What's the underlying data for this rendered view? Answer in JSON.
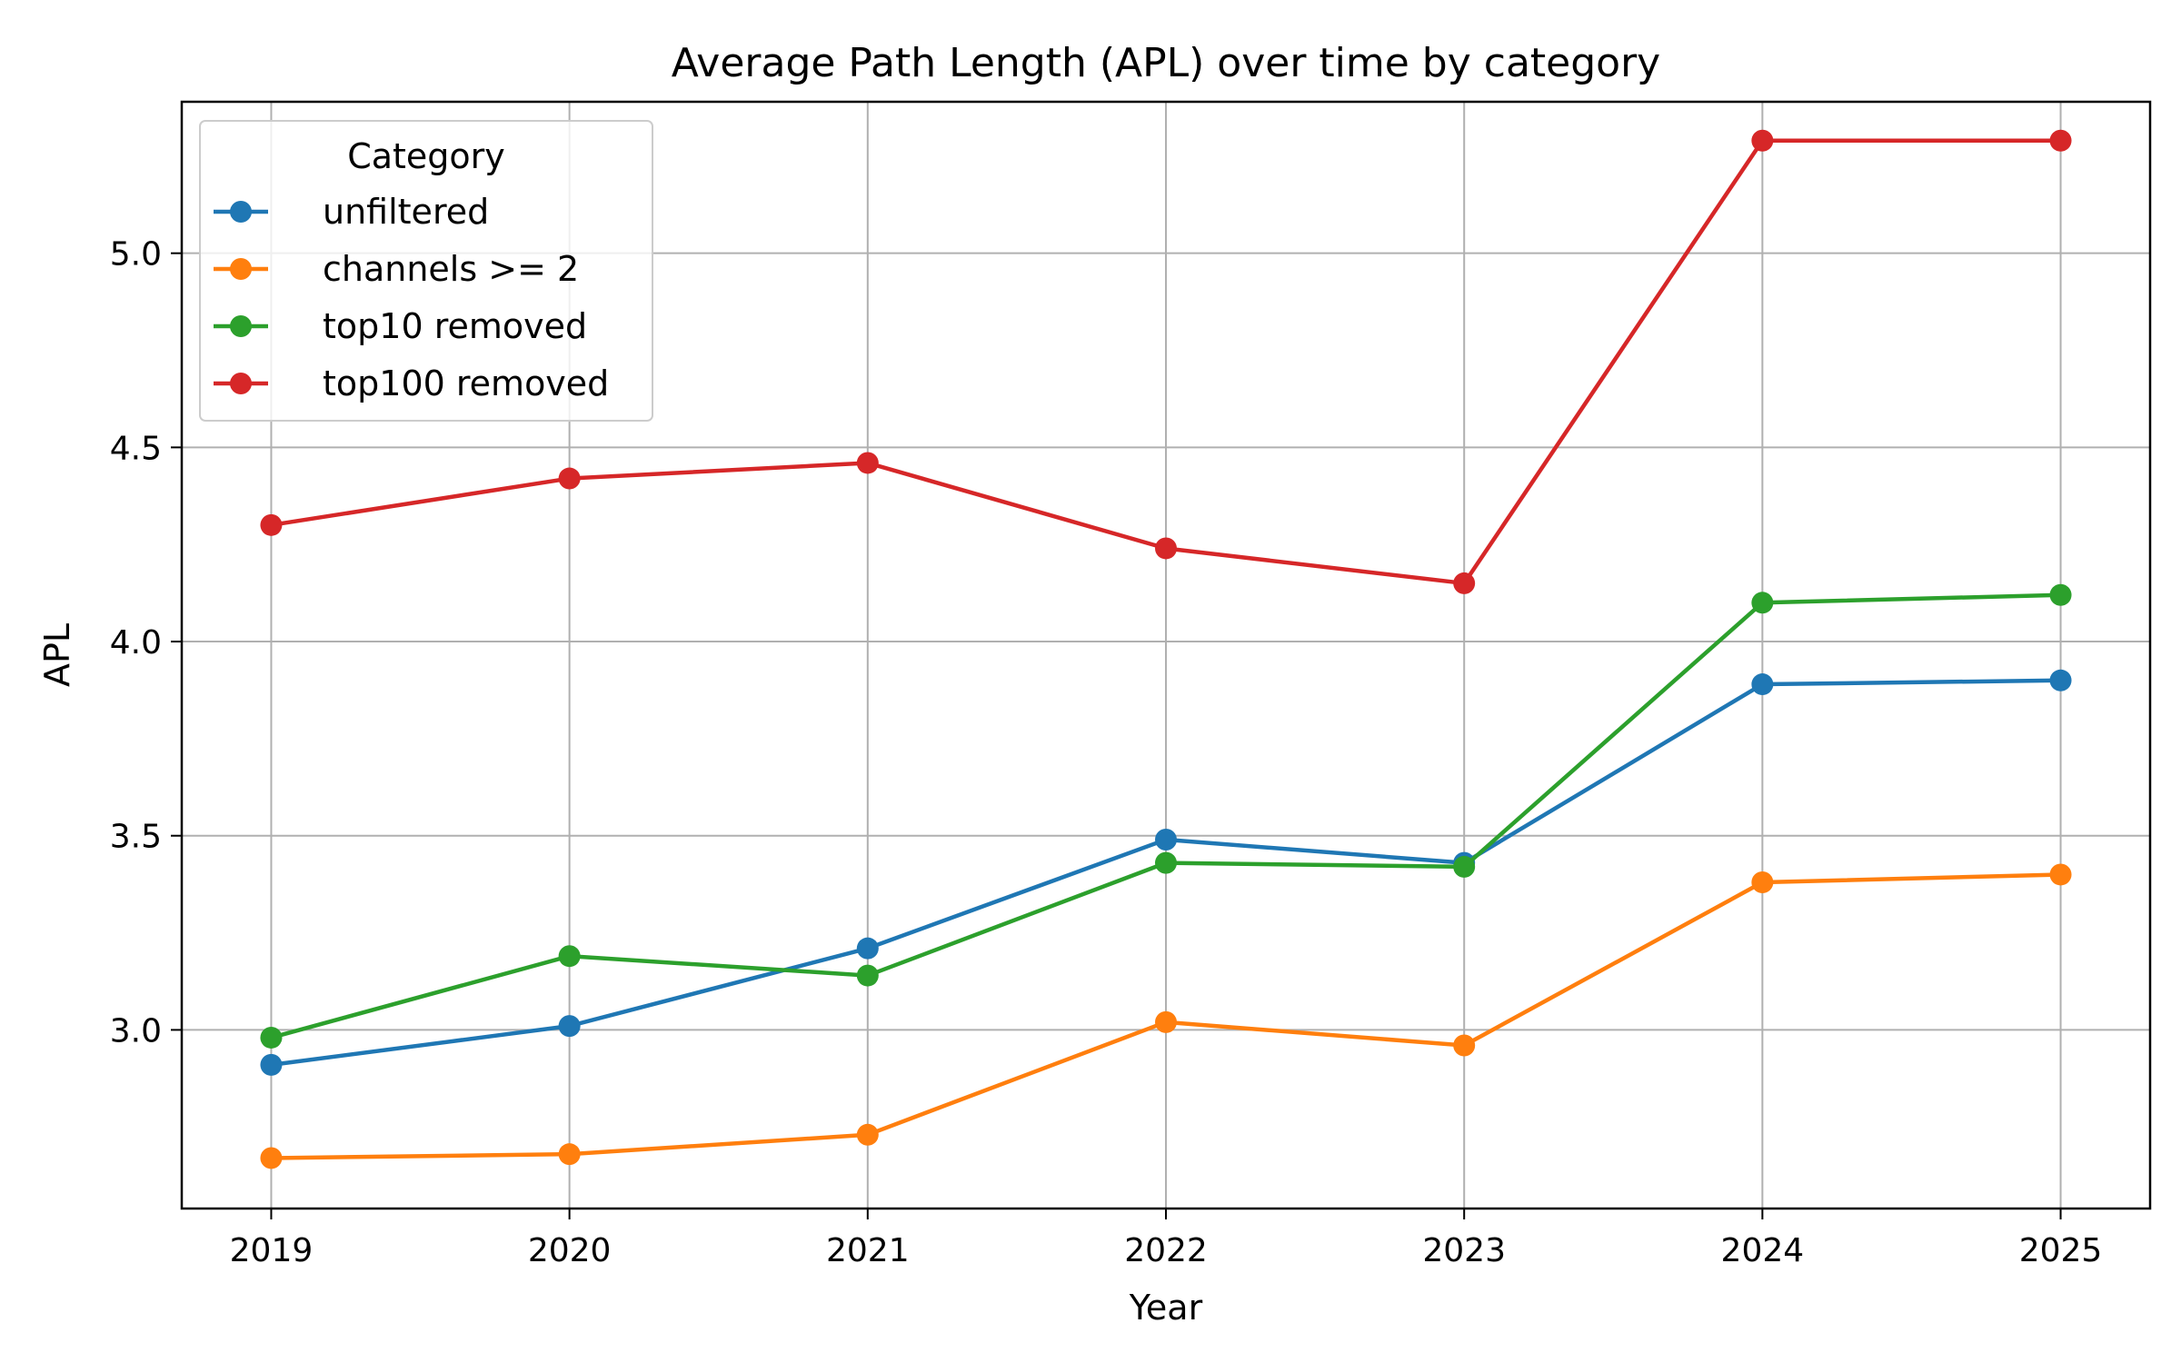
{
  "chart_data": {
    "type": "line",
    "title": "Average Path Length (APL) over time by category",
    "xlabel": "Year",
    "ylabel": "APL",
    "x": [
      2019,
      2020,
      2021,
      2022,
      2023,
      2024,
      2025
    ],
    "x_tick_labels": [
      "2019",
      "2020",
      "2021",
      "2022",
      "2023",
      "2024",
      "2025"
    ],
    "y_ticks": [
      3.0,
      3.5,
      4.0,
      4.5,
      5.0
    ],
    "y_tick_labels": [
      "3.0",
      "3.5",
      "4.0",
      "4.5",
      "5.0"
    ],
    "xlim": [
      2018.7,
      2025.3
    ],
    "ylim": [
      2.54,
      5.39
    ],
    "grid": true,
    "legend": {
      "title": "Category",
      "placement": "top-left"
    },
    "series": [
      {
        "name": "unfiltered",
        "color": "#1f77b4",
        "values": [
          2.91,
          3.01,
          3.21,
          3.49,
          3.43,
          3.89,
          3.9
        ]
      },
      {
        "name": "channels >= 2",
        "color": "#ff7f0e",
        "values": [
          2.67,
          2.68,
          2.73,
          3.02,
          2.96,
          3.38,
          3.4
        ]
      },
      {
        "name": "top10 removed",
        "color": "#2ca02c",
        "values": [
          2.98,
          3.19,
          3.14,
          3.43,
          3.42,
          4.1,
          4.12
        ]
      },
      {
        "name": "top100 removed",
        "color": "#d62728",
        "values": [
          4.3,
          4.42,
          4.46,
          4.24,
          4.15,
          5.29,
          5.29
        ]
      }
    ]
  }
}
